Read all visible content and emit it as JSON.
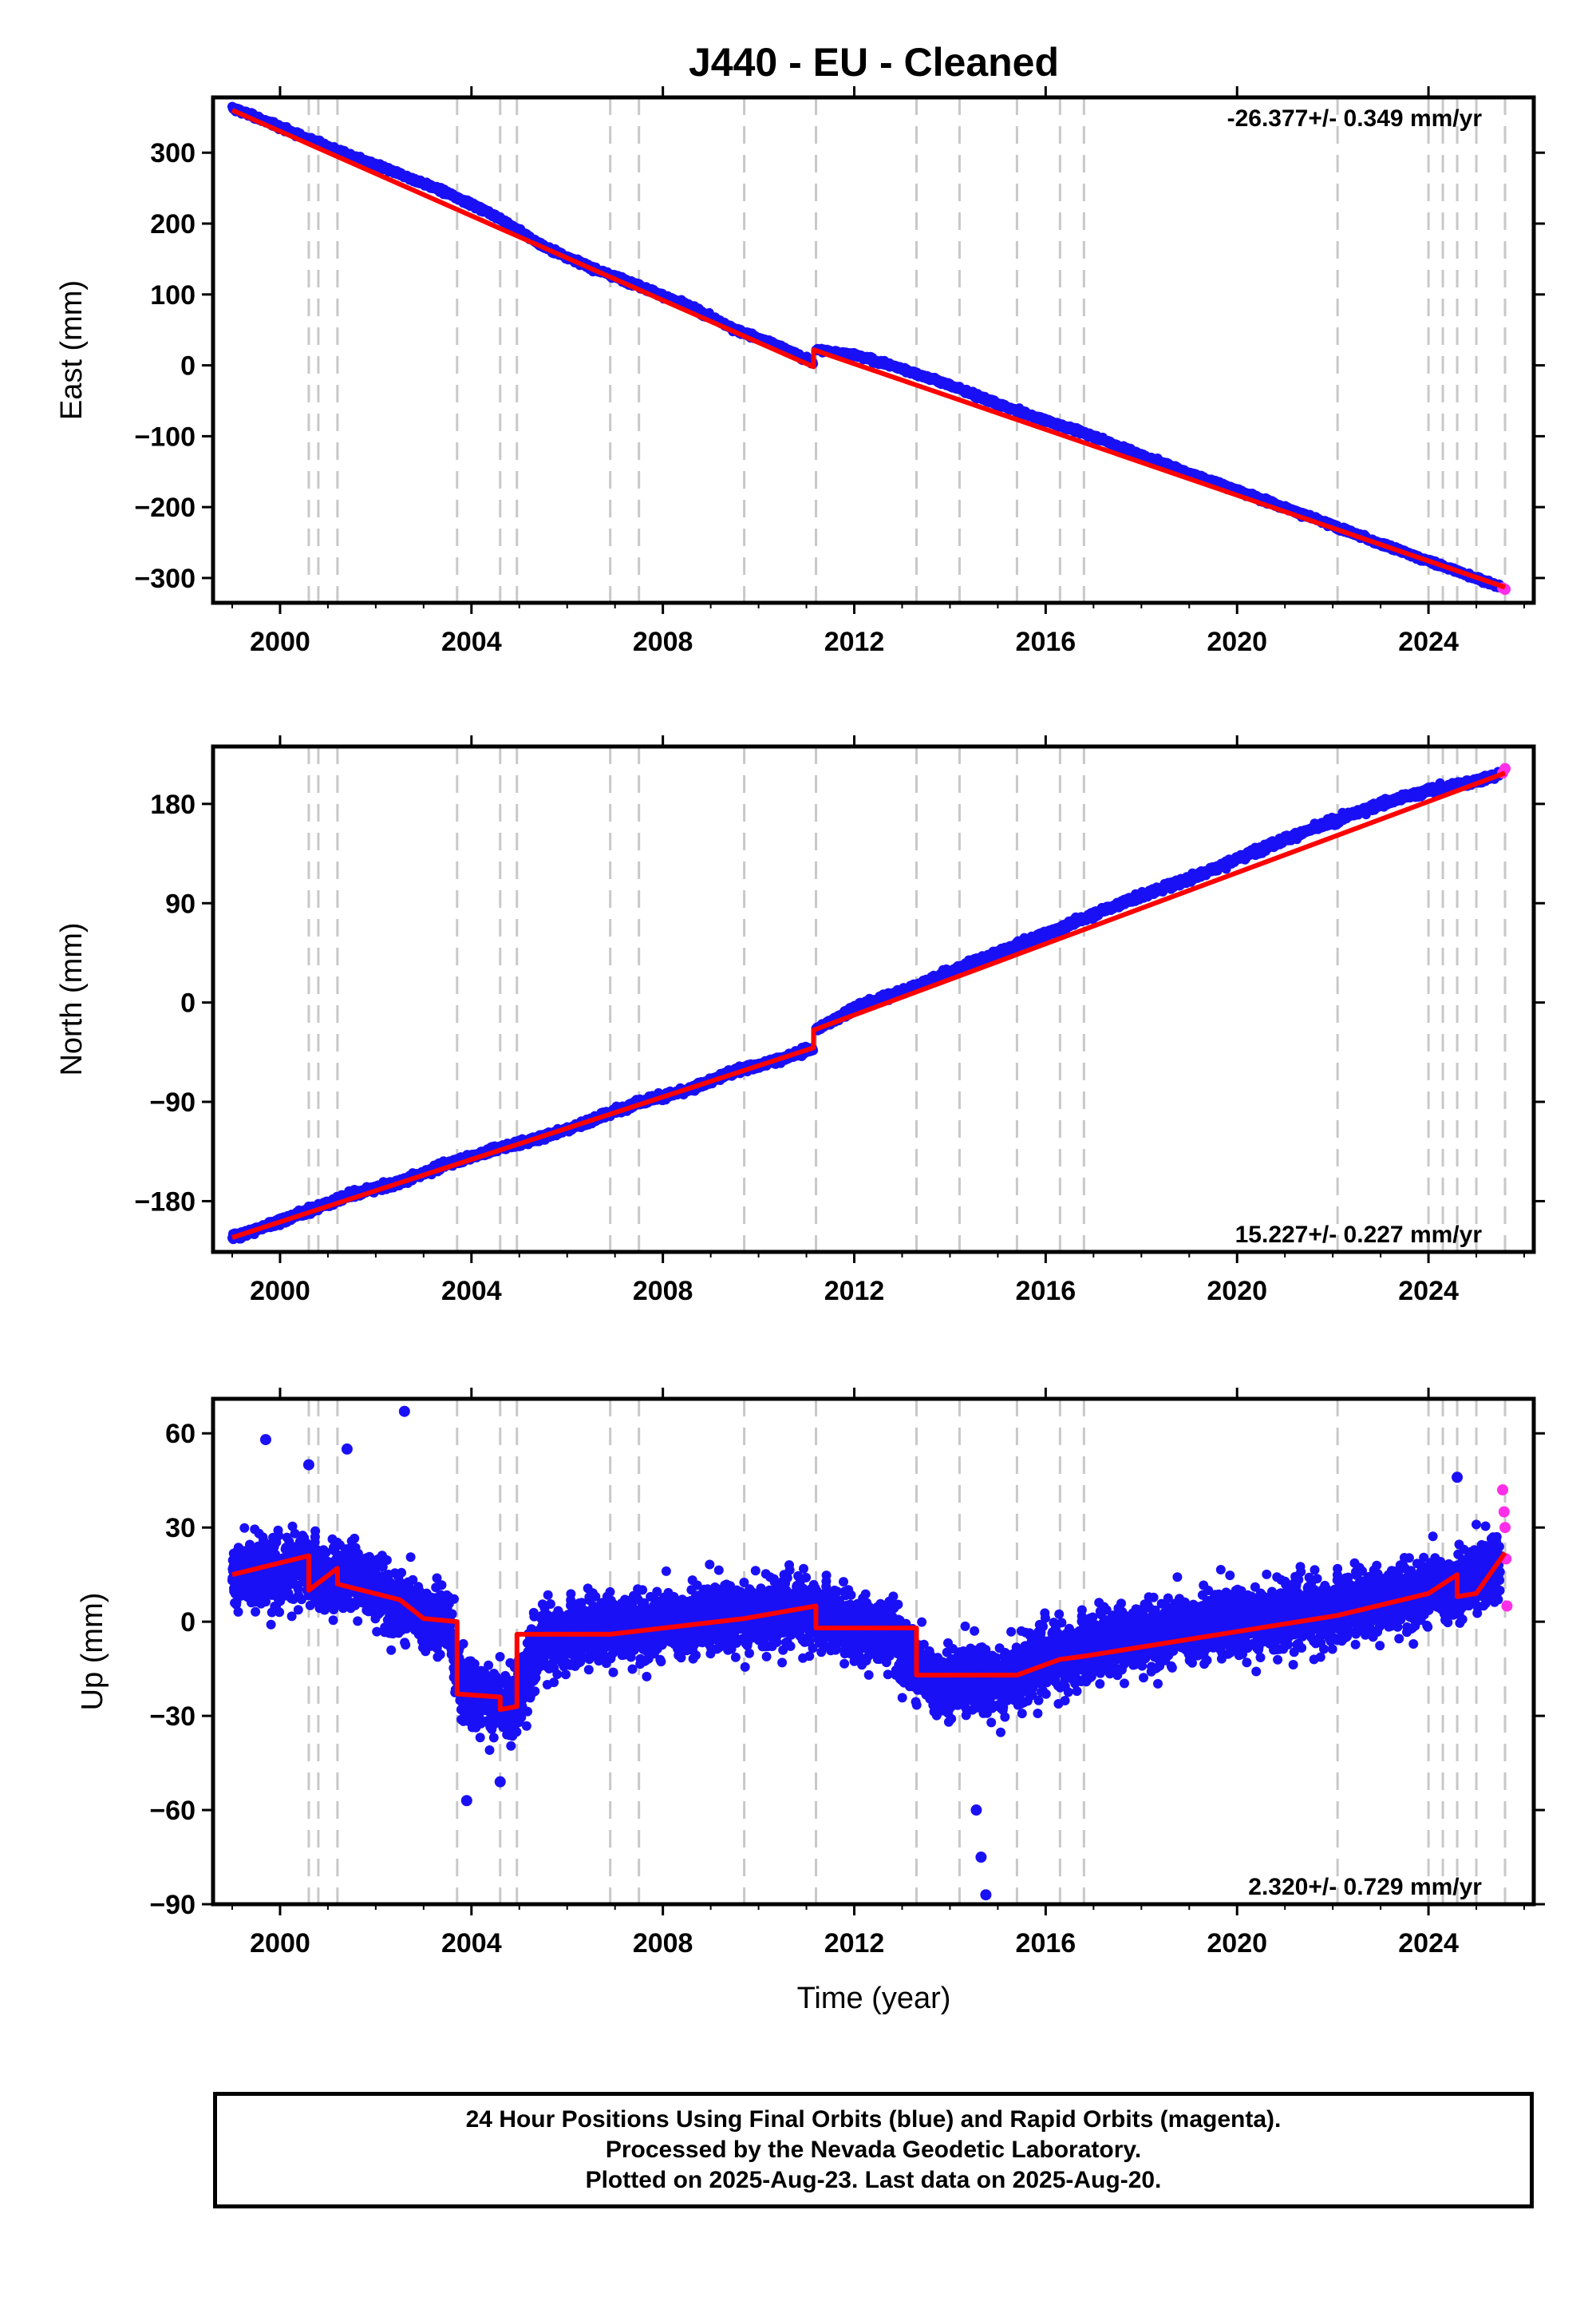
{
  "title": "J440  - EU - Cleaned",
  "xlabel": "Time (year)",
  "footer": {
    "line1": "24 Hour Positions Using Final Orbits (blue) and Rapid Orbits (magenta).",
    "line2": "Processed by the Nevada Geodetic Laboratory.",
    "line3": "Plotted on 2025-Aug-23. Last data on 2025-Aug-20."
  },
  "colors": {
    "final": "#1a10f5",
    "rapid": "#ff2ee8",
    "model": "#ff0000",
    "event_line": "#c8c8c8"
  },
  "chart_data": [
    {
      "type": "scatter",
      "component": "East",
      "ylabel": "East (mm)",
      "rate_text": "-26.377+/- 0.349 mm/yr",
      "rate_position": "top-right",
      "xlim": [
        1998.6,
        2026.2
      ],
      "ylim": [
        -335,
        378
      ],
      "yticks": [
        300,
        200,
        100,
        0,
        -100,
        -200,
        -300
      ],
      "ytick_labels": [
        "300",
        "200",
        "100",
        "0",
        "−100",
        "−200",
        "−300"
      ],
      "xticks": [
        2000,
        2004,
        2008,
        2012,
        2016,
        2020,
        2024
      ],
      "xtick_labels": [
        "2000",
        "2004",
        "2008",
        "2012",
        "2016",
        "2020",
        "2024"
      ],
      "event_lines": [
        2000.6,
        2000.8,
        2001.2,
        2003.7,
        2004.6,
        2004.95,
        2006.9,
        2007.5,
        2009.7,
        2011.2,
        2013.3,
        2014.2,
        2015.4,
        2016.3,
        2016.8,
        2022.1,
        2024.0,
        2024.3,
        2024.6,
        2025.0,
        2025.6
      ],
      "series": [
        {
          "kind": "final",
          "x": [
            1999.0,
            1999.5,
            2000.5,
            2001.5,
            2002.5,
            2003.5,
            2004.5,
            2005.5,
            2006.5,
            2007.5,
            2008.5,
            2009.5,
            2010.5,
            2011.15
          ],
          "y": [
            363,
            350,
            322,
            295,
            270,
            243,
            211,
            168,
            138,
            112,
            85,
            51,
            25,
            3
          ]
        },
        {
          "kind": "final",
          "x": [
            2011.2,
            2012.0,
            2013.0,
            2014.0,
            2015.0,
            2016.0,
            2017.0,
            2018.0,
            2019.0,
            2020.0,
            2021.0,
            2022.0,
            2023.0,
            2024.0,
            2025.0,
            2025.5
          ],
          "y": [
            22,
            15,
            -5,
            -28,
            -55,
            -78,
            -100,
            -127,
            -152,
            -176,
            -201,
            -226,
            -252,
            -276,
            -300,
            -313
          ]
        },
        {
          "kind": "rapid",
          "x": [
            2025.55,
            2025.6
          ],
          "y": [
            -314,
            -316
          ]
        }
      ],
      "model": {
        "x": [
          1999.0,
          2011.15,
          2011.15,
          2025.6
        ],
        "y": [
          360,
          -2,
          22,
          -313
        ]
      }
    },
    {
      "type": "scatter",
      "component": "North",
      "ylabel": "North (mm)",
      "rate_text": "15.227+/- 0.227 mm/yr",
      "rate_position": "bottom-right",
      "xlim": [
        1998.6,
        2026.2
      ],
      "ylim": [
        -226,
        232
      ],
      "yticks": [
        180,
        90,
        0,
        -90,
        -180
      ],
      "ytick_labels": [
        "180",
        "90",
        "0",
        "−90",
        "−180"
      ],
      "xticks": [
        2000,
        2004,
        2008,
        2012,
        2016,
        2020,
        2024
      ],
      "xtick_labels": [
        "2000",
        "2004",
        "2008",
        "2012",
        "2016",
        "2020",
        "2024"
      ],
      "event_lines": [
        2000.6,
        2000.8,
        2001.2,
        2003.7,
        2004.6,
        2004.95,
        2006.9,
        2007.5,
        2009.7,
        2011.2,
        2013.3,
        2014.2,
        2015.4,
        2016.3,
        2016.8,
        2022.1,
        2024.0,
        2024.3,
        2024.6,
        2025.0,
        2025.6
      ],
      "series": [
        {
          "kind": "final",
          "x": [
            1999.0,
            1999.5,
            2000.5,
            2001.5,
            2002.5,
            2003.5,
            2004.5,
            2005.5,
            2006.5,
            2007.5,
            2008.5,
            2009.5,
            2010.5,
            2011.15
          ],
          "y": [
            -213,
            -206,
            -190,
            -174,
            -163,
            -146,
            -133,
            -122,
            -107,
            -90,
            -80,
            -62,
            -51,
            -41
          ]
        },
        {
          "kind": "final",
          "x": [
            2011.2,
            2012.0,
            2013.0,
            2014.0,
            2015.0,
            2016.0,
            2017.0,
            2018.0,
            2019.0,
            2020.0,
            2021.0,
            2022.0,
            2023.0,
            2024.0,
            2025.0,
            2025.5
          ],
          "y": [
            -25,
            -5,
            10,
            28,
            45,
            62,
            80,
            97,
            112,
            130,
            148,
            164,
            180,
            192,
            201,
            207
          ]
        },
        {
          "kind": "rapid",
          "x": [
            2025.55,
            2025.6
          ],
          "y": [
            208,
            212
          ]
        }
      ],
      "model": {
        "x": [
          1999.0,
          2011.15,
          2011.15,
          2025.6
        ],
        "y": [
          -213,
          -41,
          -25,
          208
        ]
      }
    },
    {
      "type": "scatter",
      "component": "Up",
      "ylabel": "Up (mm)",
      "rate_text": "2.320+/- 0.729 mm/yr",
      "rate_position": "bottom-right",
      "xlim": [
        1998.6,
        2026.2
      ],
      "ylim": [
        -90,
        71
      ],
      "yticks": [
        60,
        30,
        0,
        -30,
        -60,
        -90
      ],
      "ytick_labels": [
        "60",
        "30",
        "0",
        "−30",
        "−60",
        "−90"
      ],
      "xticks": [
        2000,
        2004,
        2008,
        2012,
        2016,
        2020,
        2024
      ],
      "xtick_labels": [
        "2000",
        "2004",
        "2008",
        "2012",
        "2016",
        "2020",
        "2024"
      ],
      "event_lines": [
        2000.6,
        2000.8,
        2001.2,
        2003.7,
        2004.6,
        2004.95,
        2006.9,
        2007.5,
        2009.7,
        2011.2,
        2013.3,
        2014.2,
        2015.4,
        2016.3,
        2016.8,
        2022.1,
        2024.0,
        2024.3,
        2024.6,
        2025.0,
        2025.6
      ],
      "series": [
        {
          "kind": "final",
          "x": [
            1999.0,
            1999.5,
            2000.0,
            2000.5,
            2001.0,
            2001.5,
            2002.0,
            2002.5,
            2003.0,
            2003.5,
            2003.8,
            2004.3,
            2004.9,
            2005.5,
            2006.5,
            2007.5,
            2008.5,
            2009.5,
            2010.5,
            2011.2,
            2012.0,
            2012.8,
            2013.4,
            2014.0,
            2014.5,
            2015.0,
            2016.0,
            2017.0,
            2018.0,
            2019.0,
            2020.0,
            2021.0,
            2022.0,
            2023.0,
            2024.0,
            2024.8,
            2025.5
          ],
          "y": [
            15,
            17,
            14,
            20,
            12,
            15,
            10,
            5,
            2,
            0,
            -22,
            -24,
            -26,
            -5,
            -3,
            -2,
            0,
            2,
            3,
            4,
            -3,
            -4,
            -17,
            -20,
            -18,
            -19,
            -12,
            -8,
            -5,
            -2,
            0,
            2,
            4,
            6,
            10,
            12,
            18
          ]
        },
        {
          "kind": "final",
          "x": [
            1999.7,
            2000.6,
            2001.4,
            2002.6,
            2003.9,
            2004.6,
            2014.55,
            2014.65,
            2014.75,
            2024.6
          ],
          "y": [
            58,
            50,
            55,
            67,
            -57,
            -51,
            -60,
            -75,
            -87,
            46
          ]
        },
        {
          "kind": "rapid",
          "x": [
            2025.55,
            2025.58,
            2025.6,
            2025.62,
            2025.64
          ],
          "y": [
            42,
            35,
            30,
            20,
            5
          ]
        }
      ],
      "model": {
        "x": [
          1999.0,
          2000.6,
          2000.6,
          2001.2,
          2001.2,
          2002.5,
          2003.0,
          2003.7,
          2003.7,
          2004.6,
          2004.6,
          2004.95,
          2004.95,
          2006.9,
          2009.7,
          2011.2,
          2011.2,
          2013.3,
          2013.3,
          2015.4,
          2016.3,
          2016.8,
          2022.1,
          2024.0,
          2024.6,
          2024.6,
          2025.0,
          2025.6
        ],
        "y": [
          15,
          21,
          10,
          17,
          12,
          7,
          1,
          0,
          -23,
          -24,
          -28,
          -27,
          -4,
          -4,
          1,
          5,
          -2,
          -2,
          -17,
          -17,
          -12,
          -11,
          2,
          9,
          15,
          8,
          9,
          22
        ]
      }
    }
  ]
}
